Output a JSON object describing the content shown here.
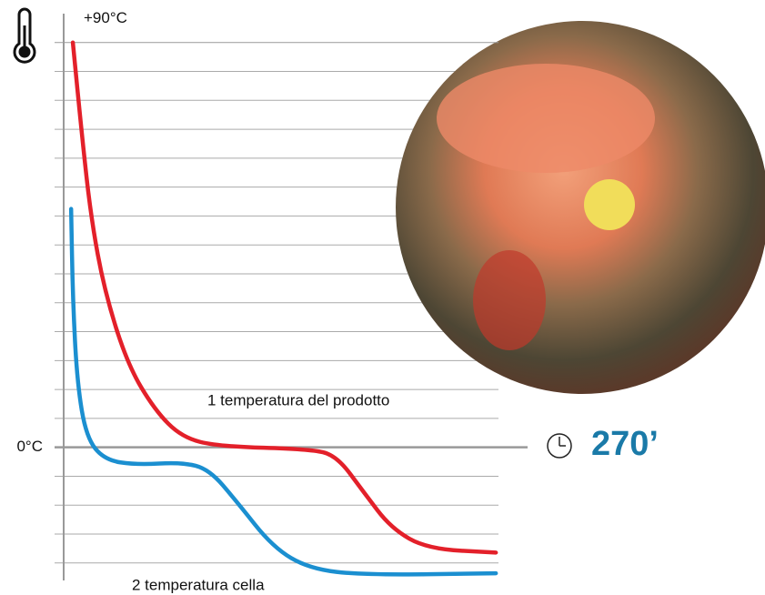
{
  "chart_data": {
    "type": "line",
    "xlim": [
      0,
      100
    ],
    "ylim": [
      -30,
      95
    ],
    "yticks": [
      {
        "value": 90,
        "label": "+90°C"
      },
      {
        "value": 0,
        "label": "0°C"
      }
    ],
    "grid": true,
    "annotation": "270’",
    "series": [
      {
        "name": "1 temperatura del prodotto",
        "color": "#e3202a",
        "x": [
          1.7,
          3.8,
          5.9,
          9.0,
          14.3,
          20.6,
          26.9,
          35.3,
          56.3,
          62.6,
          68.9,
          75.2,
          83.6,
          99.4
        ],
        "values": [
          90,
          69.3,
          51,
          34.8,
          18.5,
          8.3,
          2.2,
          0.2,
          -0.4,
          -1.8,
          -10,
          -18,
          -22.6,
          -23.4
        ]
      },
      {
        "name": "2 temperatura cella",
        "color": "#1b8fd0",
        "x": [
          1.3,
          1.7,
          2.7,
          4.8,
          9.0,
          16.4,
          26.9,
          33.2,
          39.5,
          47.9,
          56.3,
          68.9,
          99.4
        ],
        "values": [
          53,
          32.7,
          14.4,
          2.2,
          -2.8,
          -3.9,
          -3.3,
          -4.9,
          -12,
          -22.2,
          -27,
          -28.4,
          -28
        ]
      }
    ]
  }
}
